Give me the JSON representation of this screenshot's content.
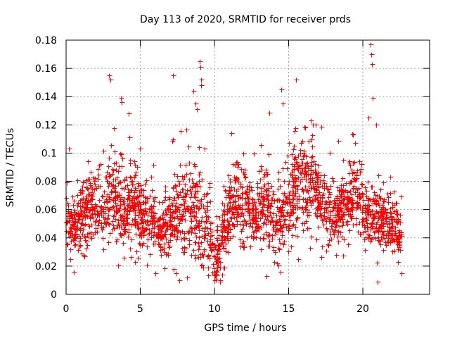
{
  "chart_data": {
    "type": "scatter",
    "title": "Day 113 of 2020, SRMTID for receiver prds",
    "xlabel": "GPS time / hours",
    "ylabel": "SRMTID / TECUs",
    "xlim": [
      0,
      24.5
    ],
    "ylim": [
      0,
      0.18
    ],
    "x_ticks": [
      0,
      5,
      10,
      15,
      20
    ],
    "y_ticks": [
      0,
      0.02,
      0.04,
      0.06,
      0.08,
      0.1,
      0.12,
      0.14,
      0.16,
      0.18
    ],
    "x_tick_labels": [
      "0",
      "5",
      "10",
      "15",
      "20"
    ],
    "y_tick_labels": [
      "0",
      "0.02",
      "0.04",
      "0.06",
      "0.08",
      "0.1",
      "0.12",
      "0.14",
      "0.16",
      "0.18"
    ],
    "grid": true,
    "marker": "+",
    "color": "#ff0000",
    "series": [
      {
        "name": "SRMTID",
        "trend_x": [
          0,
          0.5,
          1,
          1.5,
          2,
          2.5,
          3,
          3.5,
          4,
          4.5,
          5,
          5.5,
          6,
          6.5,
          7,
          7.5,
          8,
          8.5,
          9,
          9.5,
          10,
          10.5,
          11,
          11.5,
          12,
          12.5,
          13,
          13.5,
          14,
          14.5,
          15,
          15.5,
          16,
          16.5,
          17,
          17.5,
          18,
          18.5,
          19,
          19.5,
          20,
          20.5,
          21,
          21.5,
          22,
          22.5
        ],
        "trend_y": [
          0.05,
          0.045,
          0.055,
          0.06,
          0.062,
          0.058,
          0.07,
          0.065,
          0.06,
          0.062,
          0.055,
          0.05,
          0.048,
          0.045,
          0.05,
          0.06,
          0.062,
          0.058,
          0.052,
          0.045,
          0.025,
          0.04,
          0.06,
          0.065,
          0.06,
          0.055,
          0.06,
          0.065,
          0.05,
          0.055,
          0.065,
          0.075,
          0.08,
          0.075,
          0.07,
          0.06,
          0.055,
          0.06,
          0.065,
          0.07,
          0.06,
          0.055,
          0.05,
          0.055,
          0.048,
          0.04
        ],
        "spread": [
          0.02,
          0.018,
          0.022,
          0.024,
          0.026,
          0.024,
          0.028,
          0.026,
          0.024,
          0.024,
          0.022,
          0.02,
          0.018,
          0.018,
          0.02,
          0.026,
          0.03,
          0.028,
          0.03,
          0.026,
          0.014,
          0.02,
          0.022,
          0.022,
          0.022,
          0.02,
          0.024,
          0.026,
          0.022,
          0.024,
          0.026,
          0.028,
          0.028,
          0.026,
          0.024,
          0.022,
          0.02,
          0.02,
          0.022,
          0.024,
          0.022,
          0.022,
          0.02,
          0.02,
          0.018,
          0.014
        ],
        "x_range": [
          0,
          22.6
        ],
        "n_points": 2400,
        "outliers": [
          {
            "x": 0.2,
            "y": 0.103
          },
          {
            "x": 2.9,
            "y": 0.155
          },
          {
            "x": 3.0,
            "y": 0.152
          },
          {
            "x": 3.7,
            "y": 0.139
          },
          {
            "x": 3.75,
            "y": 0.136
          },
          {
            "x": 7.2,
            "y": 0.155
          },
          {
            "x": 8.6,
            "y": 0.144
          },
          {
            "x": 8.7,
            "y": 0.135
          },
          {
            "x": 8.8,
            "y": 0.131
          },
          {
            "x": 9.0,
            "y": 0.165
          },
          {
            "x": 9.05,
            "y": 0.161
          },
          {
            "x": 9.1,
            "y": 0.148
          },
          {
            "x": 9.12,
            "y": 0.152
          },
          {
            "x": 14.5,
            "y": 0.145
          },
          {
            "x": 14.6,
            "y": 0.135
          },
          {
            "x": 15.5,
            "y": 0.152
          },
          {
            "x": 16.5,
            "y": 0.123
          },
          {
            "x": 16.8,
            "y": 0.12
          },
          {
            "x": 20.5,
            "y": 0.177
          },
          {
            "x": 20.55,
            "y": 0.17
          },
          {
            "x": 20.6,
            "y": 0.163
          },
          {
            "x": 20.65,
            "y": 0.139
          },
          {
            "x": 20.4,
            "y": 0.125
          },
          {
            "x": 20.9,
            "y": 0.12
          },
          {
            "x": 10.4,
            "y": 0.009
          },
          {
            "x": 21.0,
            "y": 0.009
          },
          {
            "x": 0.5,
            "y": 0.016
          },
          {
            "x": 13.5,
            "y": 0.013
          },
          {
            "x": 22.6,
            "y": 0.015
          },
          {
            "x": 6.0,
            "y": 0.015
          }
        ]
      }
    ]
  }
}
